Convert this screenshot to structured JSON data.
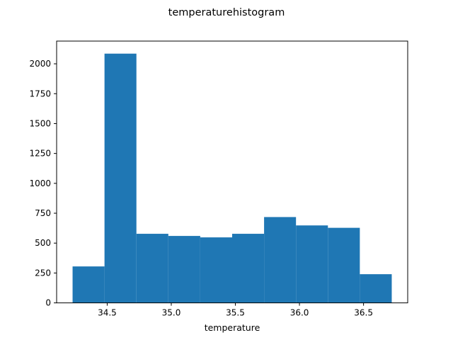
{
  "chart_data": {
    "type": "bar",
    "title": "temperaturehistogram",
    "xlabel": "temperature",
    "ylabel": "",
    "bin_edges": [
      34.23,
      34.479,
      34.728,
      34.977,
      35.226,
      35.475,
      35.724,
      35.973,
      36.222,
      36.471,
      36.72
    ],
    "values": [
      305,
      2085,
      578,
      560,
      548,
      578,
      718,
      648,
      628,
      240
    ],
    "xlim": [
      34.1055,
      36.8445
    ],
    "ylim": [
      0,
      2190
    ],
    "x_ticks": [
      "34.5",
      "35.0",
      "35.5",
      "36.0",
      "36.5"
    ],
    "y_ticks": [
      "0",
      "250",
      "500",
      "750",
      "1000",
      "1250",
      "1500",
      "1750",
      "2000"
    ],
    "bar_color": "#1f77b4",
    "grid": false
  }
}
